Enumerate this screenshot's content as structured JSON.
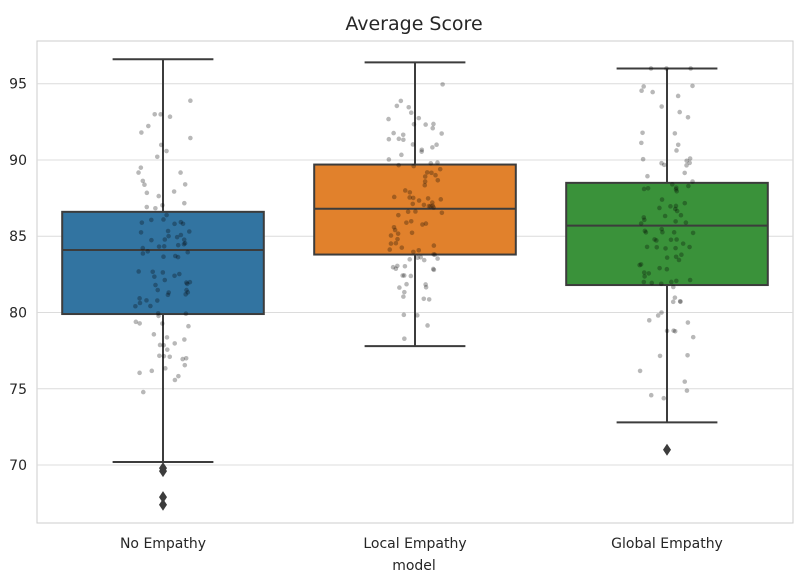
{
  "chart_data": {
    "type": "box",
    "title": "Average Score",
    "xlabel": "model",
    "ylabel": "",
    "ylim": [
      66.2,
      97.8
    ],
    "yticks": [
      70,
      75,
      80,
      85,
      90,
      95
    ],
    "grid": true,
    "categories": [
      "No Empathy",
      "Local Empathy",
      "Global Empathy"
    ],
    "colors": [
      "#3274a1",
      "#e1812c",
      "#3a923a"
    ],
    "boxes": [
      {
        "name": "No Empathy",
        "whisker_low": 70.2,
        "q1": 79.9,
        "median": 84.1,
        "q3": 86.6,
        "whisker_high": 96.6,
        "outliers": [
          69.8,
          69.6,
          67.9,
          67.4
        ]
      },
      {
        "name": "Local Empathy",
        "whisker_low": 77.8,
        "q1": 83.8,
        "median": 86.8,
        "q3": 89.7,
        "whisker_high": 96.4,
        "outliers": []
      },
      {
        "name": "Global Empathy",
        "whisker_low": 72.8,
        "q1": 81.8,
        "median": 85.7,
        "q3": 88.5,
        "whisker_high": 96.0,
        "outliers": [
          71.0
        ]
      }
    ],
    "points_per_group": 100,
    "point_seed": 7
  }
}
